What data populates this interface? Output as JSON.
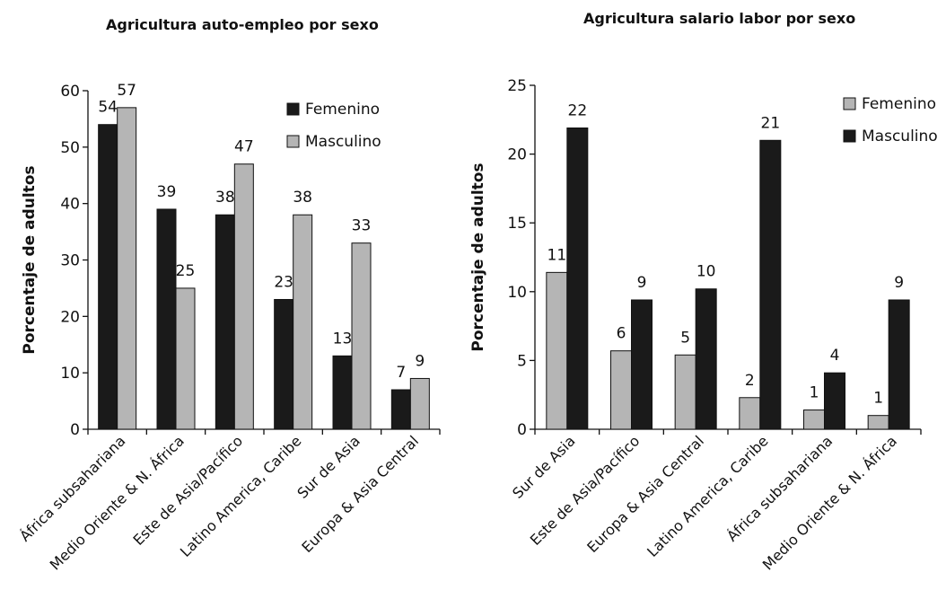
{
  "colors": {
    "femenino_left": "#1a1a1a",
    "masculino_left": "#b5b5b5",
    "femenino_right": "#b5b5b5",
    "masculino_right": "#1a1a1a"
  },
  "chart_data": [
    {
      "type": "bar",
      "title": "Agricultura auto-empleo por sexo",
      "xlabel": "",
      "ylabel": "Porcentaje de adultos",
      "ylim": [
        0,
        60
      ],
      "yticks": [
        0,
        10,
        20,
        30,
        40,
        50,
        60
      ],
      "legend_position": "top-right",
      "categories": [
        "África subsahariana",
        "Medio Oriente & N. África",
        "Este de Asia/Pacífico",
        "Latino America, Caribe",
        "Sur de Asia",
        "Europa & Asia Central"
      ],
      "series": [
        {
          "name": "Femenino",
          "values": [
            54,
            39,
            38,
            23,
            13,
            7
          ],
          "labels": [
            "54",
            "39",
            "38",
            "23",
            "13",
            "7"
          ],
          "color": "#1a1a1a"
        },
        {
          "name": "Masculino",
          "values": [
            57,
            25,
            47,
            38,
            33,
            9
          ],
          "labels": [
            "57",
            "25",
            "47",
            "38",
            "33",
            "9"
          ],
          "color": "#b5b5b5"
        }
      ]
    },
    {
      "type": "bar",
      "title": "Agricultura salario labor por sexo",
      "xlabel": "",
      "ylabel": "Porcentaje de adultos",
      "ylim": [
        0,
        25
      ],
      "yticks": [
        0,
        5,
        10,
        15,
        20,
        25
      ],
      "legend_position": "top-right",
      "categories": [
        "Sur de Asia",
        "Este de Asia/Pacífico",
        "Europa & Asia Central",
        "Latino America, Caribe",
        "África subsahariana",
        "Medio Oriente & N. África"
      ],
      "series": [
        {
          "name": "Femenino",
          "values": [
            11.4,
            5.7,
            5.4,
            2.3,
            1.4,
            1.0
          ],
          "labels": [
            "11",
            "6",
            "5",
            "2",
            "1",
            "1"
          ],
          "color": "#b5b5b5"
        },
        {
          "name": "Masculino",
          "values": [
            21.9,
            9.4,
            10.2,
            21.0,
            4.1,
            9.4
          ],
          "labels": [
            "22",
            "9",
            "10",
            "21",
            "4",
            "9"
          ],
          "color": "#1a1a1a"
        }
      ]
    }
  ]
}
